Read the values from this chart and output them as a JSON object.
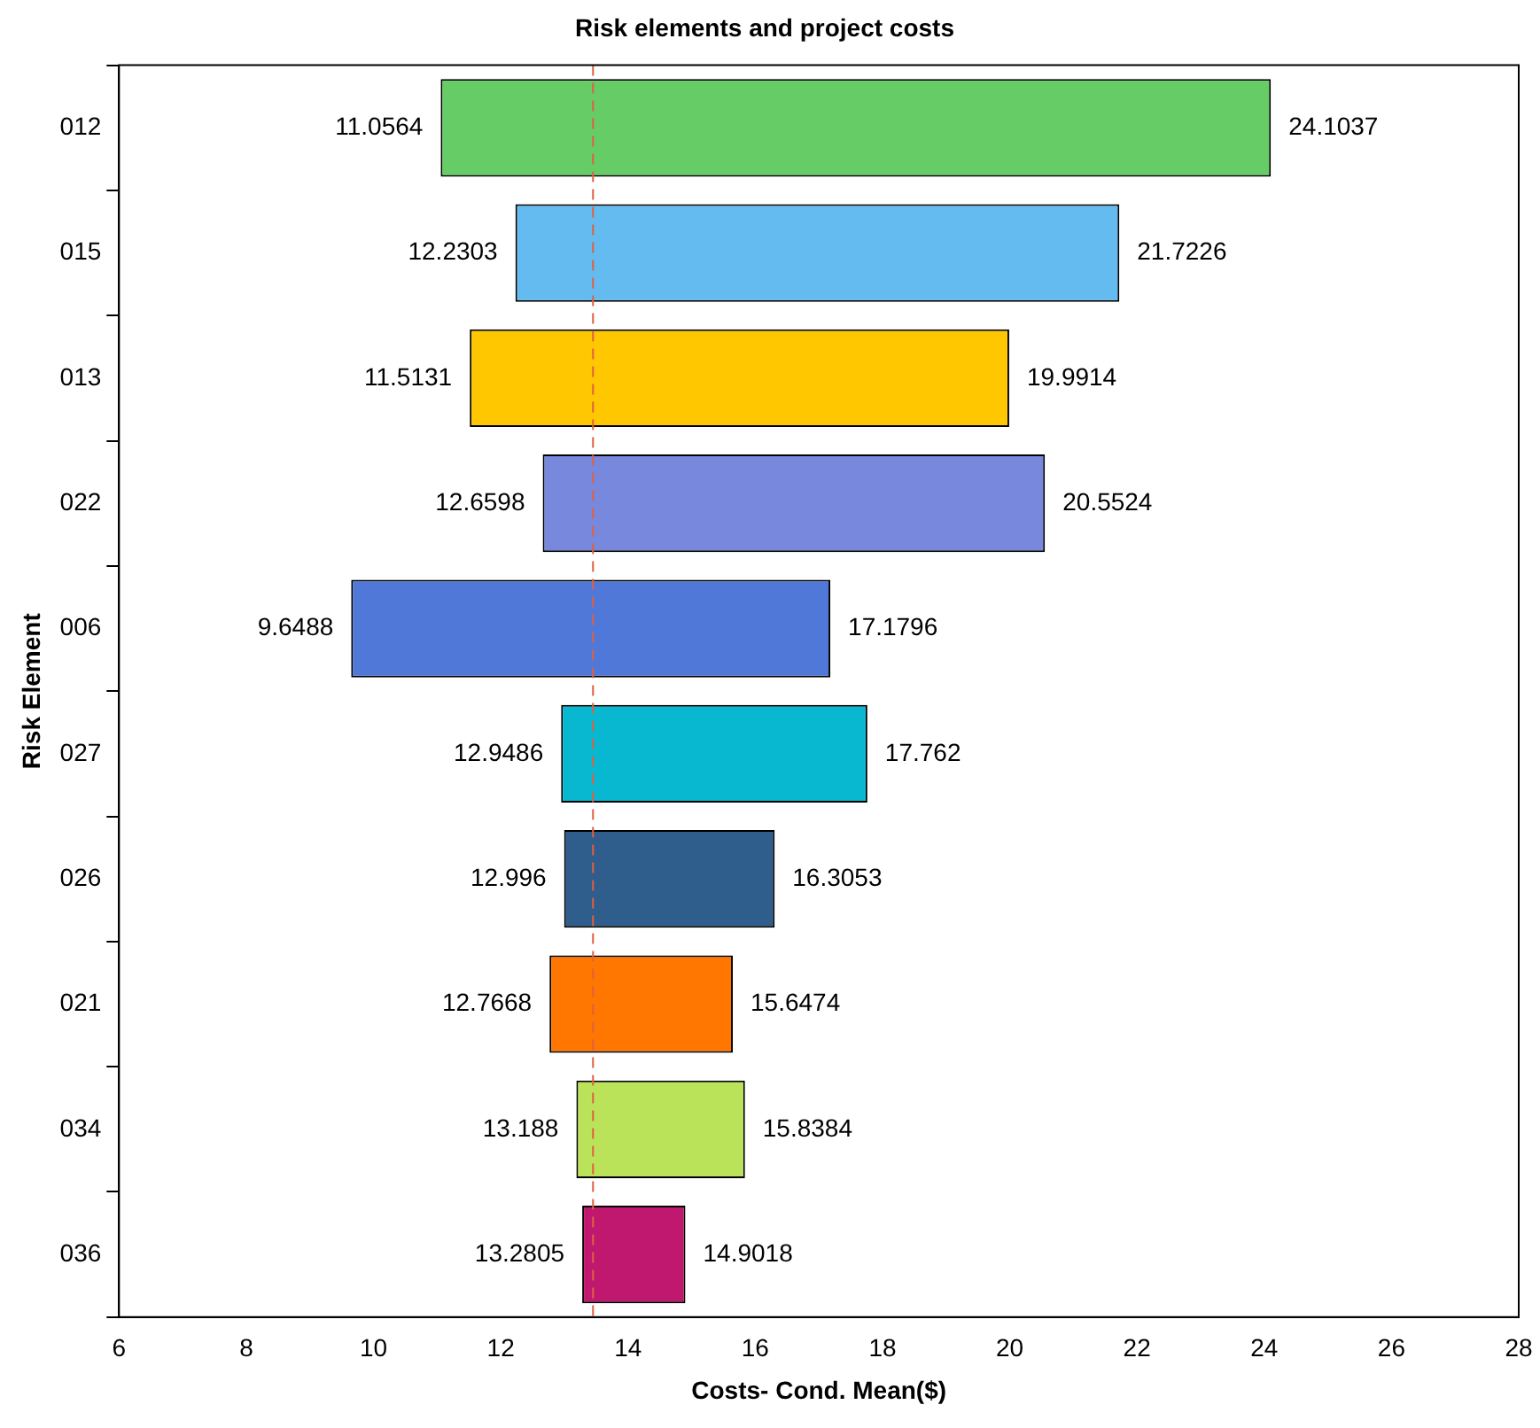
{
  "chart_data": {
    "type": "bar",
    "orientation": "horizontal",
    "title": "Risk elements and project costs",
    "xlabel": "Costs- Cond. Mean($)",
    "ylabel": "Risk Element",
    "categories": [
      "012",
      "015",
      "013",
      "022",
      "006",
      "027",
      "026",
      "021",
      "034",
      "036"
    ],
    "base": [
      11.0564,
      12.2303,
      11.5131,
      12.6598,
      9.6488,
      12.9486,
      12.996,
      12.7668,
      13.188,
      13.2805
    ],
    "values": [
      13.0473,
      9.4923,
      8.4783,
      7.8926,
      7.5308,
      4.8134,
      3.3093,
      2.8806,
      2.6504,
      1.6213
    ],
    "colors": [
      "#66cc66",
      "#63bbf0",
      "#ffc700",
      "#7788dd",
      "#5078d8",
      "#08b8d0",
      "#2f5d8c",
      "#ff7700",
      "#bbe35a",
      "#c0186f"
    ],
    "xlim": [
      6,
      28
    ],
    "xticks": [
      6,
      8,
      10,
      12,
      14,
      16,
      18,
      20,
      22,
      24,
      26,
      28
    ],
    "grid": false,
    "legend": false,
    "ref_lines": [
      {
        "axis": "x",
        "value": 13.45,
        "color": "#e06040",
        "line_style": "dashed"
      }
    ],
    "annotations": [
      {
        "text": "11.0564",
        "x": 11.0564,
        "y": "012"
      },
      {
        "text": "24.1037",
        "x": 24.1037,
        "y": "012"
      },
      {
        "text": "12.2303",
        "x": 12.2303,
        "y": "015"
      },
      {
        "text": "21.7226",
        "x": 21.7226,
        "y": "015"
      },
      {
        "text": "11.5131",
        "x": 11.5131,
        "y": "013"
      },
      {
        "text": "19.9914",
        "x": 19.9914,
        "y": "013"
      },
      {
        "text": "12.6598",
        "x": 12.6598,
        "y": "022"
      },
      {
        "text": "20.5524",
        "x": 20.5524,
        "y": "022"
      },
      {
        "text": "9.6488",
        "x": 9.6488,
        "y": "006"
      },
      {
        "text": "17.1796",
        "x": 17.1796,
        "y": "006"
      },
      {
        "text": "12.9486",
        "x": 12.9486,
        "y": "027"
      },
      {
        "text": "17.762",
        "x": 17.762,
        "y": "027"
      },
      {
        "text": "12.996",
        "x": 12.996,
        "y": "026"
      },
      {
        "text": "16.3053",
        "x": 16.3053,
        "y": "026"
      },
      {
        "text": "12.7668",
        "x": 12.7668,
        "y": "021"
      },
      {
        "text": "15.6474",
        "x": 15.6474,
        "y": "021"
      },
      {
        "text": "13.188",
        "x": 13.188,
        "y": "034"
      },
      {
        "text": "15.8384",
        "x": 15.8384,
        "y": "034"
      },
      {
        "text": "13.2805",
        "x": 13.2805,
        "y": "036"
      },
      {
        "text": "14.9018",
        "x": 14.9018,
        "y": "036"
      }
    ]
  }
}
